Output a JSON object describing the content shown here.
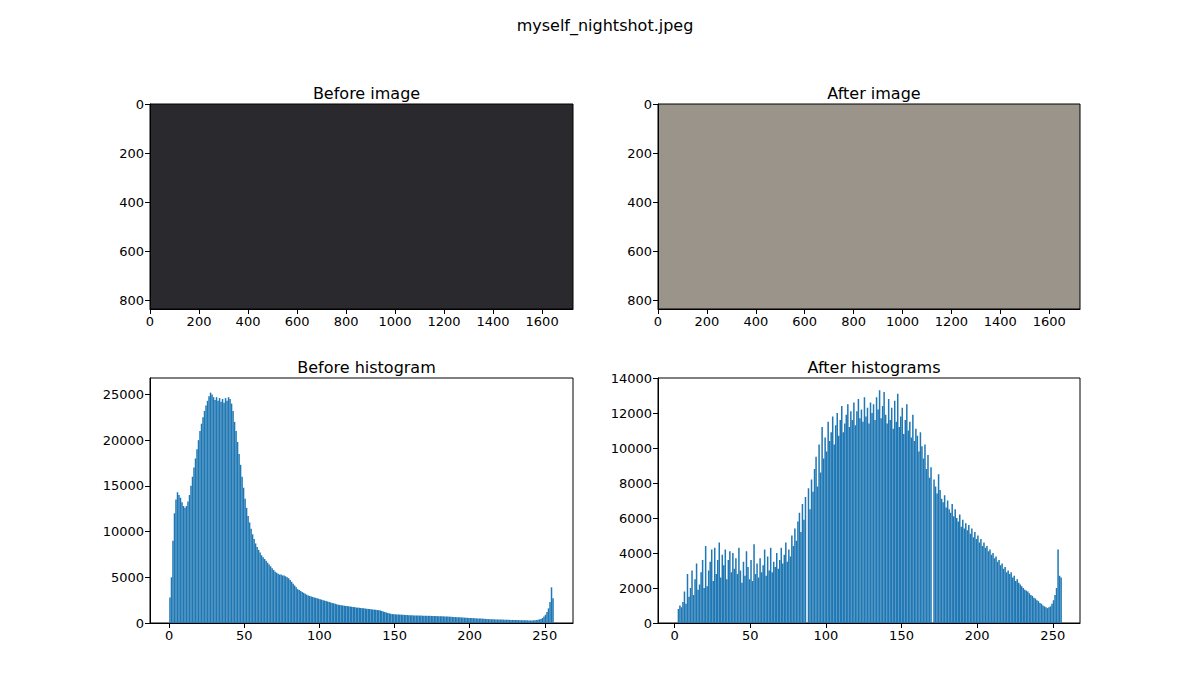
{
  "title": "myself_nightshot.jpeg",
  "chart_data": [
    {
      "type": "image",
      "title": "Before image",
      "xlim": [
        0,
        1726
      ],
      "ylim": [
        835,
        0
      ],
      "xticks": [
        0,
        200,
        400,
        600,
        800,
        1000,
        1200,
        1400,
        1600
      ],
      "yticks": [
        0,
        200,
        400,
        600,
        800
      ],
      "grid": false
    },
    {
      "type": "image",
      "title": "After image",
      "xlim": [
        0,
        1726
      ],
      "ylim": [
        835,
        0
      ],
      "xticks": [
        0,
        200,
        400,
        600,
        800,
        1000,
        1200,
        1400,
        1600
      ],
      "yticks": [
        0,
        200,
        400,
        600,
        800
      ],
      "grid": false
    },
    {
      "type": "histogram",
      "title": "Before histogram",
      "color": "#1f77b4",
      "grid": false,
      "xlim": [
        -12.8,
        268.8
      ],
      "ylim": [
        0,
        26800
      ],
      "xticks": [
        0,
        50,
        100,
        150,
        200,
        250
      ],
      "yticks": [
        0,
        5000,
        10000,
        15000,
        20000,
        25000
      ],
      "bins": [
        0,
        1,
        2,
        3,
        4,
        5,
        6,
        7,
        8,
        9,
        10,
        11,
        12,
        13,
        14,
        15,
        16,
        17,
        18,
        19,
        20,
        21,
        22,
        23,
        24,
        25,
        26,
        27,
        28,
        29,
        30,
        31,
        32,
        33,
        34,
        35,
        36,
        37,
        38,
        39,
        40,
        41,
        42,
        43,
        44,
        45,
        46,
        47,
        48,
        49,
        50,
        51,
        52,
        53,
        54,
        55,
        56,
        57,
        58,
        59,
        60,
        61,
        62,
        63,
        64,
        65,
        66,
        67,
        68,
        69,
        70,
        71,
        72,
        73,
        74,
        75,
        76,
        77,
        78,
        79,
        80,
        81,
        82,
        83,
        84,
        85,
        86,
        87,
        88,
        89,
        90,
        91,
        92,
        93,
        94,
        95,
        96,
        97,
        98,
        99,
        100,
        101,
        102,
        103,
        104,
        105,
        106,
        107,
        108,
        109,
        110,
        111,
        112,
        113,
        114,
        115,
        116,
        117,
        118,
        119,
        120,
        121,
        122,
        123,
        124,
        125,
        126,
        127,
        128,
        129,
        130,
        131,
        132,
        133,
        134,
        135,
        136,
        137,
        138,
        139,
        140,
        141,
        142,
        143,
        144,
        145,
        146,
        147,
        148,
        149,
        150,
        151,
        152,
        153,
        154,
        155,
        156,
        157,
        158,
        159,
        160,
        161,
        162,
        163,
        164,
        165,
        166,
        167,
        168,
        169,
        170,
        171,
        172,
        173,
        174,
        175,
        176,
        177,
        178,
        179,
        180,
        181,
        182,
        183,
        184,
        185,
        186,
        187,
        188,
        189,
        190,
        191,
        192,
        193,
        194,
        195,
        196,
        197,
        198,
        199,
        200,
        201,
        202,
        203,
        204,
        205,
        206,
        207,
        208,
        209,
        210,
        211,
        212,
        213,
        214,
        215,
        216,
        217,
        218,
        219,
        220,
        221,
        222,
        223,
        224,
        225,
        226,
        227,
        228,
        229,
        230,
        231,
        232,
        233,
        234,
        235,
        236,
        237,
        238,
        239,
        240,
        241,
        242,
        243,
        244,
        245,
        246,
        247,
        248,
        249,
        250,
        251,
        252,
        253,
        254,
        255,
        256
      ],
      "values": [
        2800,
        5000,
        9000,
        12000,
        13500,
        14300,
        14000,
        13700,
        13200,
        12800,
        12600,
        12800,
        13300,
        14000,
        15000,
        16000,
        17000,
        18000,
        19000,
        20000,
        21000,
        21800,
        22500,
        23200,
        23800,
        24300,
        24800,
        25200,
        25000,
        24700,
        24400,
        24700,
        24300,
        24600,
        24200,
        24500,
        24100,
        24600,
        24300,
        24700,
        24500,
        24000,
        23200,
        22000,
        21000,
        19800,
        18500,
        17300,
        16000,
        14800,
        13600,
        12600,
        11700,
        11000,
        10300,
        9700,
        9200,
        8700,
        8300,
        8000,
        7700,
        7400,
        7200,
        7000,
        6800,
        6600,
        6400,
        6200,
        6000,
        5800,
        5600,
        5500,
        5400,
        5300,
        5300,
        5200,
        5200,
        5100,
        5000,
        4900,
        4700,
        4500,
        4300,
        4100,
        3900,
        3700,
        3600,
        3500,
        3400,
        3300,
        3200,
        3100,
        3000,
        2950,
        2900,
        2850,
        2800,
        2750,
        2700,
        2650,
        2600,
        2550,
        2500,
        2450,
        2400,
        2350,
        2300,
        2250,
        2200,
        2150,
        2100,
        2050,
        2000,
        1980,
        1950,
        1920,
        1900,
        1870,
        1850,
        1820,
        1800,
        1780,
        1750,
        1730,
        1700,
        1680,
        1660,
        1640,
        1620,
        1600,
        1580,
        1560,
        1540,
        1520,
        1500,
        1480,
        1460,
        1440,
        1420,
        1400,
        1380,
        1300,
        1250,
        1200,
        1150,
        1100,
        1050,
        1000,
        980,
        960,
        950,
        940,
        930,
        920,
        910,
        900,
        890,
        880,
        870,
        860,
        850,
        840,
        830,
        830,
        820,
        820,
        810,
        810,
        800,
        800,
        790,
        790,
        780,
        780,
        770,
        770,
        760,
        760,
        750,
        750,
        740,
        740,
        730,
        720,
        710,
        700,
        690,
        680,
        670,
        660,
        650,
        640,
        630,
        620,
        610,
        600,
        590,
        580,
        570,
        560,
        550,
        540,
        530,
        520,
        510,
        500,
        490,
        480,
        470,
        460,
        450,
        440,
        430,
        420,
        410,
        400,
        400,
        390,
        390,
        380,
        380,
        370,
        370,
        360,
        360,
        350,
        350,
        340,
        340,
        330,
        330,
        320,
        320,
        310,
        310,
        300,
        300,
        290,
        290,
        280,
        280,
        280,
        290,
        300,
        320,
        350,
        400,
        450,
        550,
        700,
        900,
        1200,
        1600,
        2300,
        3900,
        2700
      ]
    },
    {
      "type": "histogram",
      "title": "After histograms",
      "color": "#1f77b4",
      "grid": false,
      "xlim": [
        -11,
        268
      ],
      "ylim": [
        0,
        14000
      ],
      "xticks": [
        0,
        50,
        100,
        150,
        200,
        250
      ],
      "yticks": [
        0,
        2000,
        4000,
        6000,
        8000,
        10000,
        12000,
        14000
      ],
      "bins": [
        0,
        1,
        2,
        3,
        4,
        5,
        6,
        7,
        8,
        9,
        10,
        11,
        12,
        13,
        14,
        15,
        16,
        17,
        18,
        19,
        20,
        21,
        22,
        23,
        24,
        25,
        26,
        27,
        28,
        29,
        30,
        31,
        32,
        33,
        34,
        35,
        36,
        37,
        38,
        39,
        40,
        41,
        42,
        43,
        44,
        45,
        46,
        47,
        48,
        49,
        50,
        51,
        52,
        53,
        54,
        55,
        56,
        57,
        58,
        59,
        60,
        61,
        62,
        63,
        64,
        65,
        66,
        67,
        68,
        69,
        70,
        71,
        72,
        73,
        74,
        75,
        76,
        77,
        78,
        79,
        80,
        81,
        82,
        83,
        84,
        85,
        86,
        87,
        88,
        89,
        90,
        91,
        92,
        93,
        94,
        95,
        96,
        97,
        98,
        99,
        100,
        101,
        102,
        103,
        104,
        105,
        106,
        107,
        108,
        109,
        110,
        111,
        112,
        113,
        114,
        115,
        116,
        117,
        118,
        119,
        120,
        121,
        122,
        123,
        124,
        125,
        126,
        127,
        128,
        129,
        130,
        131,
        132,
        133,
        134,
        135,
        136,
        137,
        138,
        139,
        140,
        141,
        142,
        143,
        144,
        145,
        146,
        147,
        148,
        149,
        150,
        151,
        152,
        153,
        154,
        155,
        156,
        157,
        158,
        159,
        160,
        161,
        162,
        163,
        164,
        165,
        166,
        167,
        168,
        169,
        170,
        171,
        172,
        173,
        174,
        175,
        176,
        177,
        178,
        179,
        180,
        181,
        182,
        183,
        184,
        185,
        186,
        187,
        188,
        189,
        190,
        191,
        192,
        193,
        194,
        195,
        196,
        197,
        198,
        199,
        200,
        201,
        202,
        203,
        204,
        205,
        206,
        207,
        208,
        209,
        210,
        211,
        212,
        213,
        214,
        215,
        216,
        217,
        218,
        219,
        220,
        221,
        222,
        223,
        224,
        225,
        226,
        227,
        228,
        229,
        230,
        231,
        232,
        233,
        234,
        235,
        236,
        237,
        238,
        239,
        240,
        241,
        242,
        243,
        244,
        245,
        246,
        247,
        248,
        249,
        250,
        251,
        252,
        253,
        254,
        255,
        256
      ],
      "values": [
        0,
        0,
        800,
        1000,
        900,
        1200,
        1800,
        1100,
        2800,
        1500,
        2000,
        3000,
        1600,
        2500,
        3400,
        1900,
        2200,
        2900,
        3600,
        2000,
        4400,
        2100,
        3000,
        3500,
        4200,
        2400,
        4300,
        2800,
        3600,
        4600,
        2600,
        3900,
        3300,
        4200,
        2500,
        3600,
        4100,
        2900,
        4000,
        3100,
        3700,
        2800,
        4300,
        3000,
        2300,
        3500,
        2700,
        4100,
        3200,
        2500,
        3600,
        2400,
        4500,
        2800,
        3400,
        2600,
        3700,
        2900,
        3300,
        4200,
        2700,
        3800,
        3000,
        4300,
        2900,
        3500,
        3200,
        4000,
        3100,
        3600,
        4300,
        3400,
        3900,
        4600,
        3500,
        4200,
        3800,
        5000,
        4400,
        5400,
        4700,
        5800,
        6300,
        5200,
        6800,
        5900,
        7200,
        0,
        7700,
        6500,
        8200,
        7500,
        8800,
        9500,
        7800,
        10200,
        8600,
        11200,
        9400,
        10600,
        9800,
        11500,
        10400,
        10900,
        11800,
        10200,
        11300,
        12000,
        10700,
        11600,
        12400,
        10900,
        11400,
        11900,
        12500,
        11200,
        12100,
        11600,
        12600,
        11300,
        12100,
        12800,
        11700,
        12200,
        11500,
        12900,
        11800,
        12300,
        11400,
        12600,
        12000,
        12500,
        11600,
        12900,
        12200,
        13300,
        11700,
        12400,
        13200,
        11900,
        11400,
        12800,
        11600,
        12300,
        11100,
        12700,
        11500,
        13100,
        11200,
        11800,
        12300,
        10800,
        11600,
        12500,
        11000,
        11500,
        10600,
        11900,
        10400,
        11100,
        10700,
        9800,
        10900,
        10100,
        9400,
        10200,
        8800,
        9600,
        8300,
        8900,
        0,
        8200,
        7800,
        7400,
        8500,
        7600,
        7100,
        6900,
        7300,
        6600,
        7000,
        6500,
        6300,
        6800,
        6100,
        6500,
        6000,
        5800,
        6200,
        5500,
        5900,
        5400,
        5700,
        5300,
        5600,
        5100,
        5400,
        4900,
        5200,
        4800,
        5000,
        4600,
        4800,
        4400,
        4600,
        4300,
        4400,
        4100,
        4200,
        3900,
        4000,
        3700,
        3800,
        3500,
        3600,
        3300,
        3400,
        3100,
        3200,
        2900,
        3000,
        2800,
        2900,
        2600,
        2700,
        2400,
        2500,
        2300,
        2200,
        2100,
        2000,
        1900,
        1850,
        1800,
        1700,
        1600,
        1550,
        1450,
        1400,
        1300,
        1250,
        1150,
        1100,
        1000,
        950,
        900,
        850,
        900,
        950,
        1100,
        1300,
        1600,
        2000,
        4200,
        2700,
        2600
      ]
    }
  ]
}
